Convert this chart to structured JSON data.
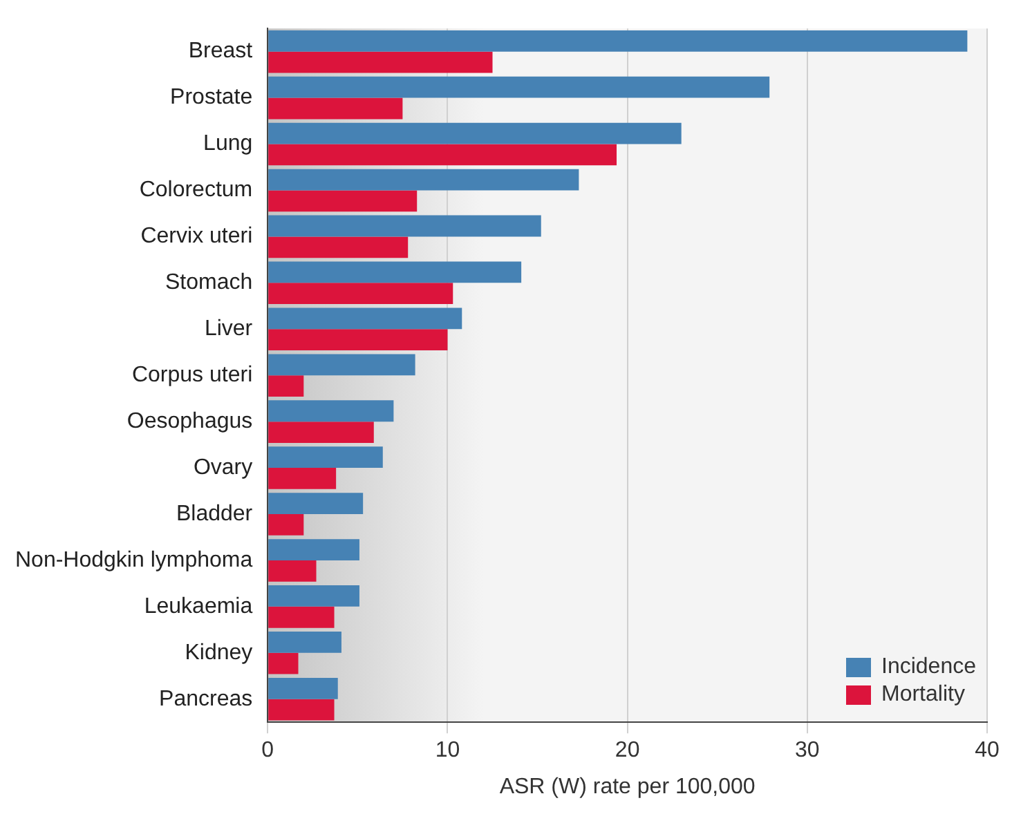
{
  "chart_data": {
    "type": "bar",
    "orientation": "horizontal",
    "xlabel": "ASR (W) rate per 100,000",
    "categories": [
      "Breast",
      "Prostate",
      "Lung",
      "Colorectum",
      "Cervix uteri",
      "Stomach",
      "Liver",
      "Corpus uteri",
      "Oesophagus",
      "Ovary",
      "Bladder",
      "Non-Hodgkin lymphoma",
      "Leukaemia",
      "Kidney",
      "Pancreas"
    ],
    "series": [
      {
        "name": "Incidence",
        "color": "#4682b4",
        "values": [
          38.9,
          27.9,
          23.0,
          17.3,
          15.2,
          14.1,
          10.8,
          8.2,
          7.0,
          6.4,
          5.3,
          5.1,
          5.1,
          4.1,
          3.9
        ]
      },
      {
        "name": "Mortality",
        "color": "#dc143c",
        "values": [
          12.5,
          7.5,
          19.4,
          8.3,
          7.8,
          10.3,
          10.0,
          2.0,
          5.9,
          3.8,
          2.0,
          2.7,
          3.7,
          1.7,
          3.7
        ]
      }
    ],
    "xlim": [
      0,
      40
    ],
    "xticks": [
      0,
      10,
      20,
      30,
      40
    ],
    "grid": "x",
    "legend": "bottom right"
  }
}
